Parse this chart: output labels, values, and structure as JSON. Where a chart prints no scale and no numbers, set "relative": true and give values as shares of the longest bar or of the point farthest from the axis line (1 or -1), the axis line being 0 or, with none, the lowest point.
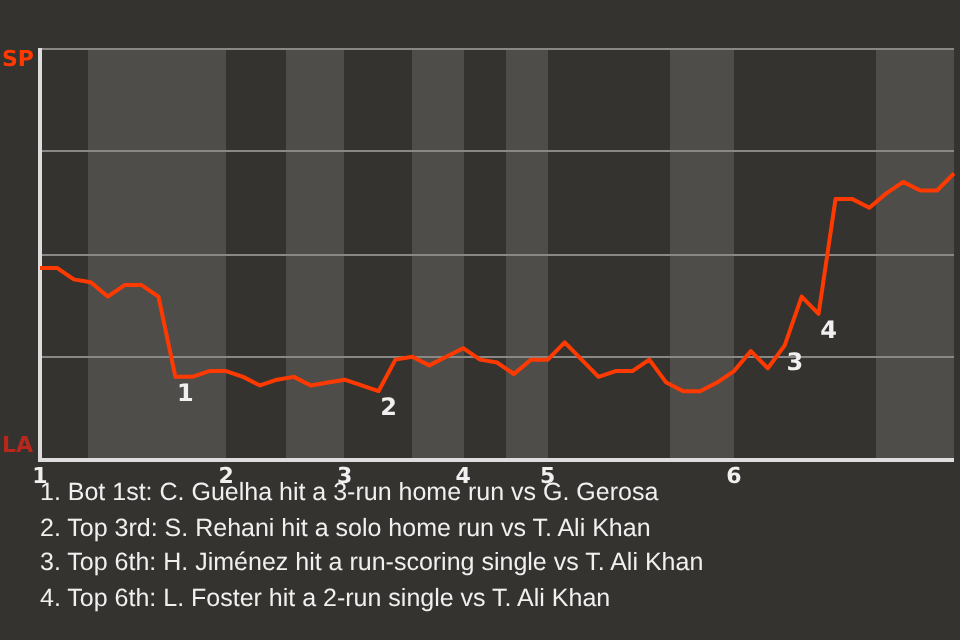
{
  "chart_data": {
    "type": "line",
    "relative": true,
    "categories": [
      "1",
      null,
      null,
      null,
      null,
      null,
      null,
      null,
      null,
      null,
      null,
      "2",
      null,
      null,
      null,
      null,
      null,
      null,
      "3",
      null,
      null,
      null,
      null,
      null,
      null,
      "4",
      null,
      null,
      null,
      null,
      "5",
      null,
      null,
      null,
      null,
      null,
      null,
      null,
      null,
      null,
      null,
      "6",
      null,
      null,
      null,
      null,
      null,
      null,
      null,
      null,
      null,
      null,
      null,
      null,
      null
    ],
    "series": [
      {
        "color": "#ff3a00",
        "values": [
          0.67,
          0.67,
          0.63,
          0.62,
          0.57,
          0.61,
          0.61,
          0.57,
          0.29,
          0.29,
          0.31,
          0.31,
          0.29,
          0.26,
          0.28,
          0.29,
          0.26,
          0.27,
          0.28,
          0.26,
          0.24,
          0.35,
          0.36,
          0.33,
          0.36,
          0.39,
          0.35,
          0.34,
          0.3,
          0.35,
          0.35,
          0.41,
          0.35,
          0.29,
          0.31,
          0.31,
          0.35,
          0.27,
          0.24,
          0.24,
          0.27,
          0.31,
          0.38,
          0.32,
          0.4,
          0.57,
          0.51,
          0.91,
          0.91,
          0.88,
          0.93,
          0.97,
          0.94,
          0.94,
          1
        ]
      }
    ],
    "ref_lines": [
      {
        "axis": "y",
        "value": 0.36,
        "color": "#8a8886"
      },
      {
        "axis": "y",
        "value": 0.72,
        "color": "#8a8886"
      },
      {
        "axis": "y",
        "value": 1.08,
        "color": "#8a8886"
      }
    ],
    "legend": false,
    "marker": "none",
    "line_style": "solid",
    "annotations": [
      "SP",
      "LA",
      {
        "text": "1",
        "y": 0.29
      },
      {
        "text": "2",
        "y": 0.24
      },
      {
        "text": "3",
        "y": 0.4
      },
      {
        "text": "4",
        "y": 0.51
      },
      "1. Bot 1st: C. Guelha hit a 3-run home run vs G. Gerosa",
      "2. Top 3rd: S. Rehani hit a solo home run vs T. Ali Khan",
      "3. Top 6th: H. Jiménez hit a run-scoring single vs T. Ali Khan",
      "4. Top 6th: L. Foster hit a 2-run single vs T. Ali Khan"
    ]
  }
}
